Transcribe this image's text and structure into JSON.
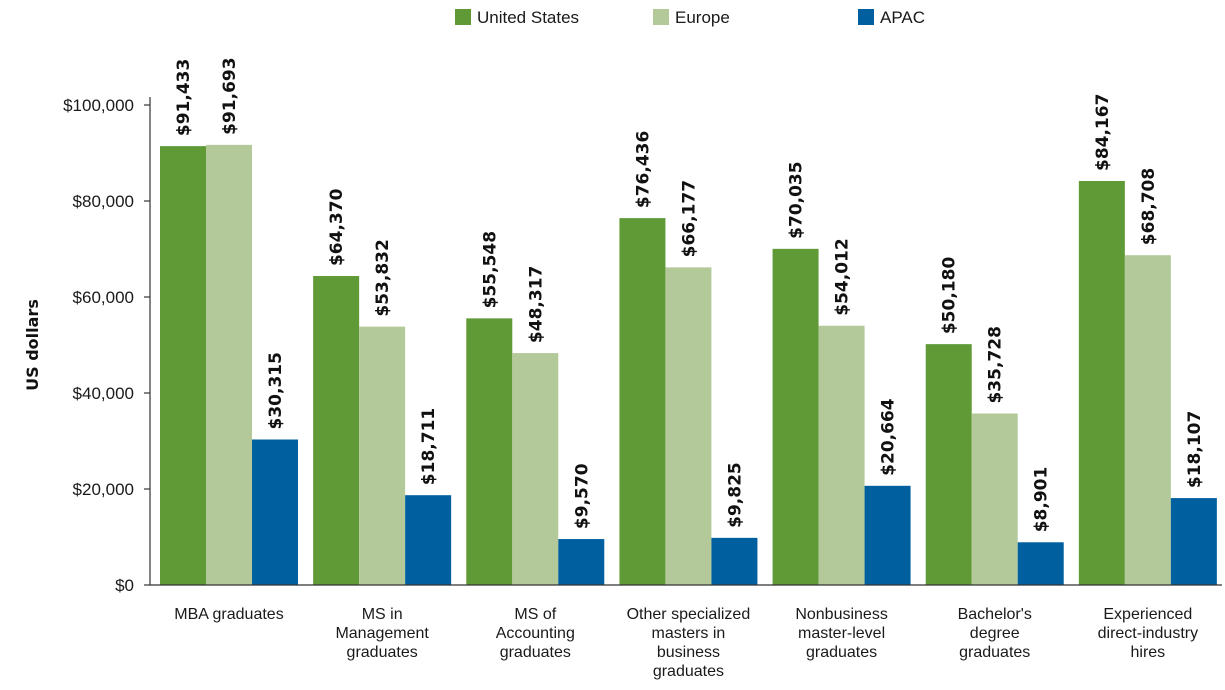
{
  "chart_data": {
    "type": "bar",
    "title": "",
    "xlabel": "",
    "ylabel": "US dollars",
    "ylim": [
      0,
      100000
    ],
    "yticks": [
      0,
      20000,
      40000,
      60000,
      80000,
      100000
    ],
    "ytick_labels": [
      "$0",
      "$20,000",
      "$40,000",
      "$60,000",
      "$80,000",
      "$100,000"
    ],
    "grid": false,
    "legend_position": "top",
    "categories": [
      "MBA graduates",
      "MS in Management graduates",
      "MS of Accounting graduates",
      "Other specialized masters in business graduates",
      "Nonbusiness master-level graduates",
      "Bachelor's degree graduates",
      "Experienced direct-industry hires"
    ],
    "category_lines": [
      [
        "MBA graduates"
      ],
      [
        "MS in",
        "Management",
        "graduates"
      ],
      [
        "MS of",
        "Accounting",
        "graduates"
      ],
      [
        "Other specialized",
        "masters in",
        "business",
        "graduates"
      ],
      [
        "Nonbusiness",
        "master-level",
        "graduates"
      ],
      [
        "Bachelor's",
        "degree",
        "graduates"
      ],
      [
        "Experienced",
        "direct-industry",
        "hires"
      ]
    ],
    "series": [
      {
        "name": "United States",
        "color": "#5f9a37",
        "values": [
          91433,
          64370,
          55548,
          76436,
          70035,
          50180,
          84167
        ],
        "labels": [
          "$91,433",
          "$64,370",
          "$55,548",
          "$76,436",
          "$70,035",
          "$50,180",
          "$84,167"
        ]
      },
      {
        "name": "Europe",
        "color": "#b3c99a",
        "values": [
          91693,
          53832,
          48317,
          66177,
          54012,
          35728,
          68708
        ],
        "labels": [
          "$91,693",
          "$53,832",
          "$48,317",
          "$66,177",
          "$54,012",
          "$35,728",
          "$68,708"
        ]
      },
      {
        "name": "APAC",
        "color": "#00609f",
        "values": [
          30315,
          18711,
          9570,
          9825,
          20664,
          8901,
          18107
        ],
        "labels": [
          "$30,315",
          "$18,711",
          "$9,570",
          "$9,825",
          "$20,664",
          "$8,901",
          "$18,107"
        ]
      }
    ]
  }
}
